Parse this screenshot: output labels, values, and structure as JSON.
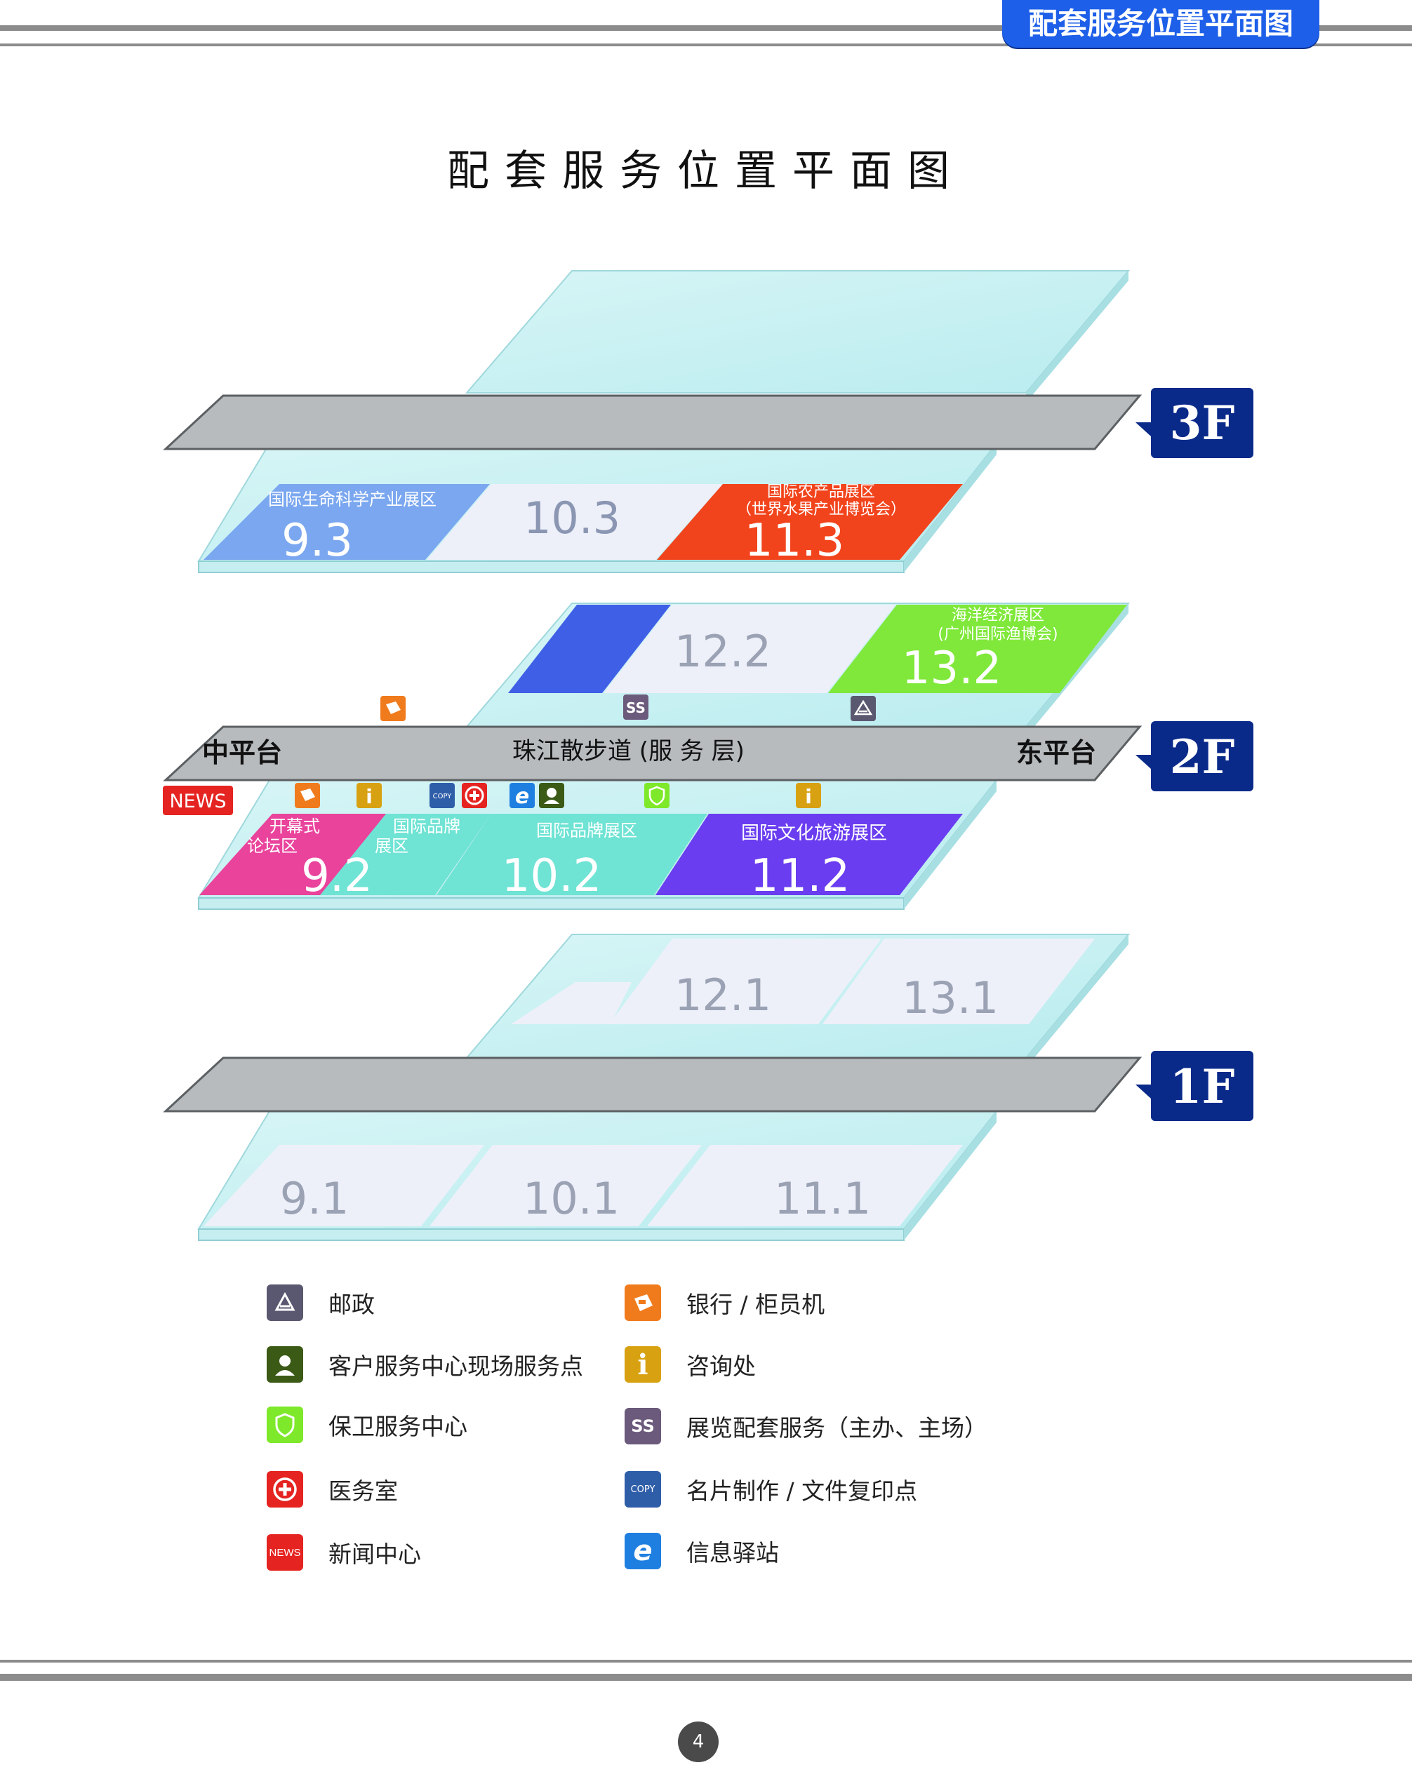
{
  "header": {
    "tab_title": "配套服务位置平面图"
  },
  "title": "配套服务位置平面图",
  "floors": {
    "f3": {
      "badge": "3F",
      "halls": [
        {
          "number": "9.3",
          "label": "国际生命科学产业展区",
          "color": "#7aa7ef"
        },
        {
          "number": "10.3",
          "label": "",
          "color": "#eef0f9"
        },
        {
          "number": "11.3",
          "label_line1": "国际农产品展区",
          "label_line2": "（世界水果产业博览会）",
          "color": "#f2441c"
        }
      ]
    },
    "f2": {
      "badge": "2F",
      "walkway": "珠江散步道   (服 务 层)",
      "platform_left": "中平台",
      "platform_right": "东平台",
      "news_tag": "NEWS",
      "halls_back": [
        {
          "number": "12.2",
          "label": "",
          "color": "#eef0f9"
        },
        {
          "number": "13.2",
          "label_line1": "海洋经济展区",
          "label_line2": "(广州国际渔博会)",
          "color": "#7fe83a"
        }
      ],
      "halls_front": [
        {
          "number": "9.2",
          "label_line1": "开幕式",
          "label_line2": "论坛区",
          "sub_line1": "国际品牌",
          "sub_line2": "展区"
        },
        {
          "number": "10.2",
          "label": "国际品牌展区",
          "color": "#6fe3d4"
        },
        {
          "number": "11.2",
          "label": "国际文化旅游展区",
          "color": "#6a3df0"
        }
      ],
      "zone_colors": {
        "forum": "#e9439c",
        "brand": "#6fe3d4",
        "blue_block": "#3f5fe6"
      }
    },
    "f1": {
      "badge": "1F",
      "halls_back": [
        {
          "number": "12.1"
        },
        {
          "number": "13.1"
        }
      ],
      "halls_front": [
        {
          "number": "9.1"
        },
        {
          "number": "10.1"
        },
        {
          "number": "11.1"
        }
      ]
    }
  },
  "legend": [
    {
      "icon": "post-icon",
      "label": "邮政",
      "color": "#5a5870"
    },
    {
      "icon": "customer-service-icon",
      "label": "客户服务中心现场服务点",
      "color": "#3b5a16"
    },
    {
      "icon": "security-shield-icon",
      "label": "保卫服务中心",
      "color": "#7ee82a"
    },
    {
      "icon": "medical-cross-icon",
      "label": "医务室",
      "color": "#e52421"
    },
    {
      "icon": "news-icon",
      "label": "新闻中心",
      "glyph": "NEWS",
      "color": "#e52421"
    },
    {
      "icon": "bank-atm-icon",
      "label": "银行 / 柜员机",
      "color": "#f07b1d"
    },
    {
      "icon": "info-icon",
      "label": "咨询处",
      "glyph": "i",
      "color": "#d8a112"
    },
    {
      "icon": "exhibition-service-icon",
      "label": "展览配套服务（主办、主场）",
      "glyph": "SS",
      "color": "#6b5a7c"
    },
    {
      "icon": "copy-print-icon",
      "label": "名片制作 / 文件复印点",
      "glyph": "COPY",
      "color": "#2f5ea9"
    },
    {
      "icon": "info-station-icon",
      "label": "信息驿站",
      "glyph": "e",
      "color": "#1f7fe0"
    }
  ],
  "page_number": "4"
}
